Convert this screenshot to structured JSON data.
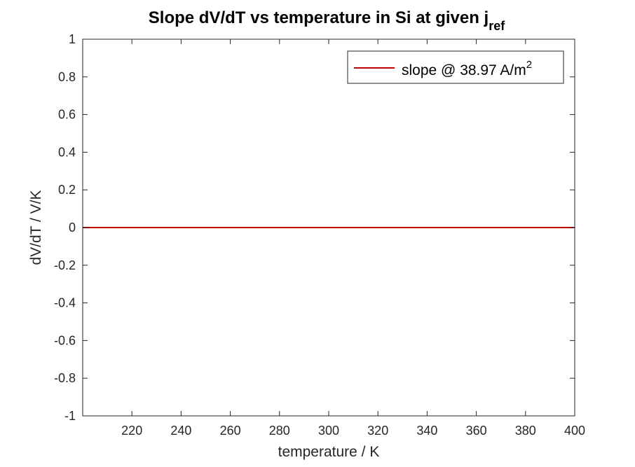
{
  "chart_data": {
    "type": "line",
    "title": {
      "main": "Slope dV/dT vs temperature in Si at given j",
      "subscript": "ref"
    },
    "xlabel": "temperature / K",
    "ylabel": "dV/dT / V/K",
    "xlim": [
      200,
      400
    ],
    "ylim": [
      -1,
      1
    ],
    "xticks": [
      220,
      240,
      260,
      280,
      300,
      320,
      340,
      360,
      380,
      400
    ],
    "yticks": [
      -1,
      -0.8,
      -0.6,
      -0.4,
      -0.2,
      0,
      0.2,
      0.4,
      0.6,
      0.8,
      1
    ],
    "grid": false,
    "legend_position": "top-right",
    "series": [
      {
        "name": "slope @ 38.97 A/m",
        "name_superscript": "2",
        "color": "#c00000",
        "x": [
          200,
          400
        ],
        "y": [
          0,
          0
        ]
      }
    ]
  }
}
